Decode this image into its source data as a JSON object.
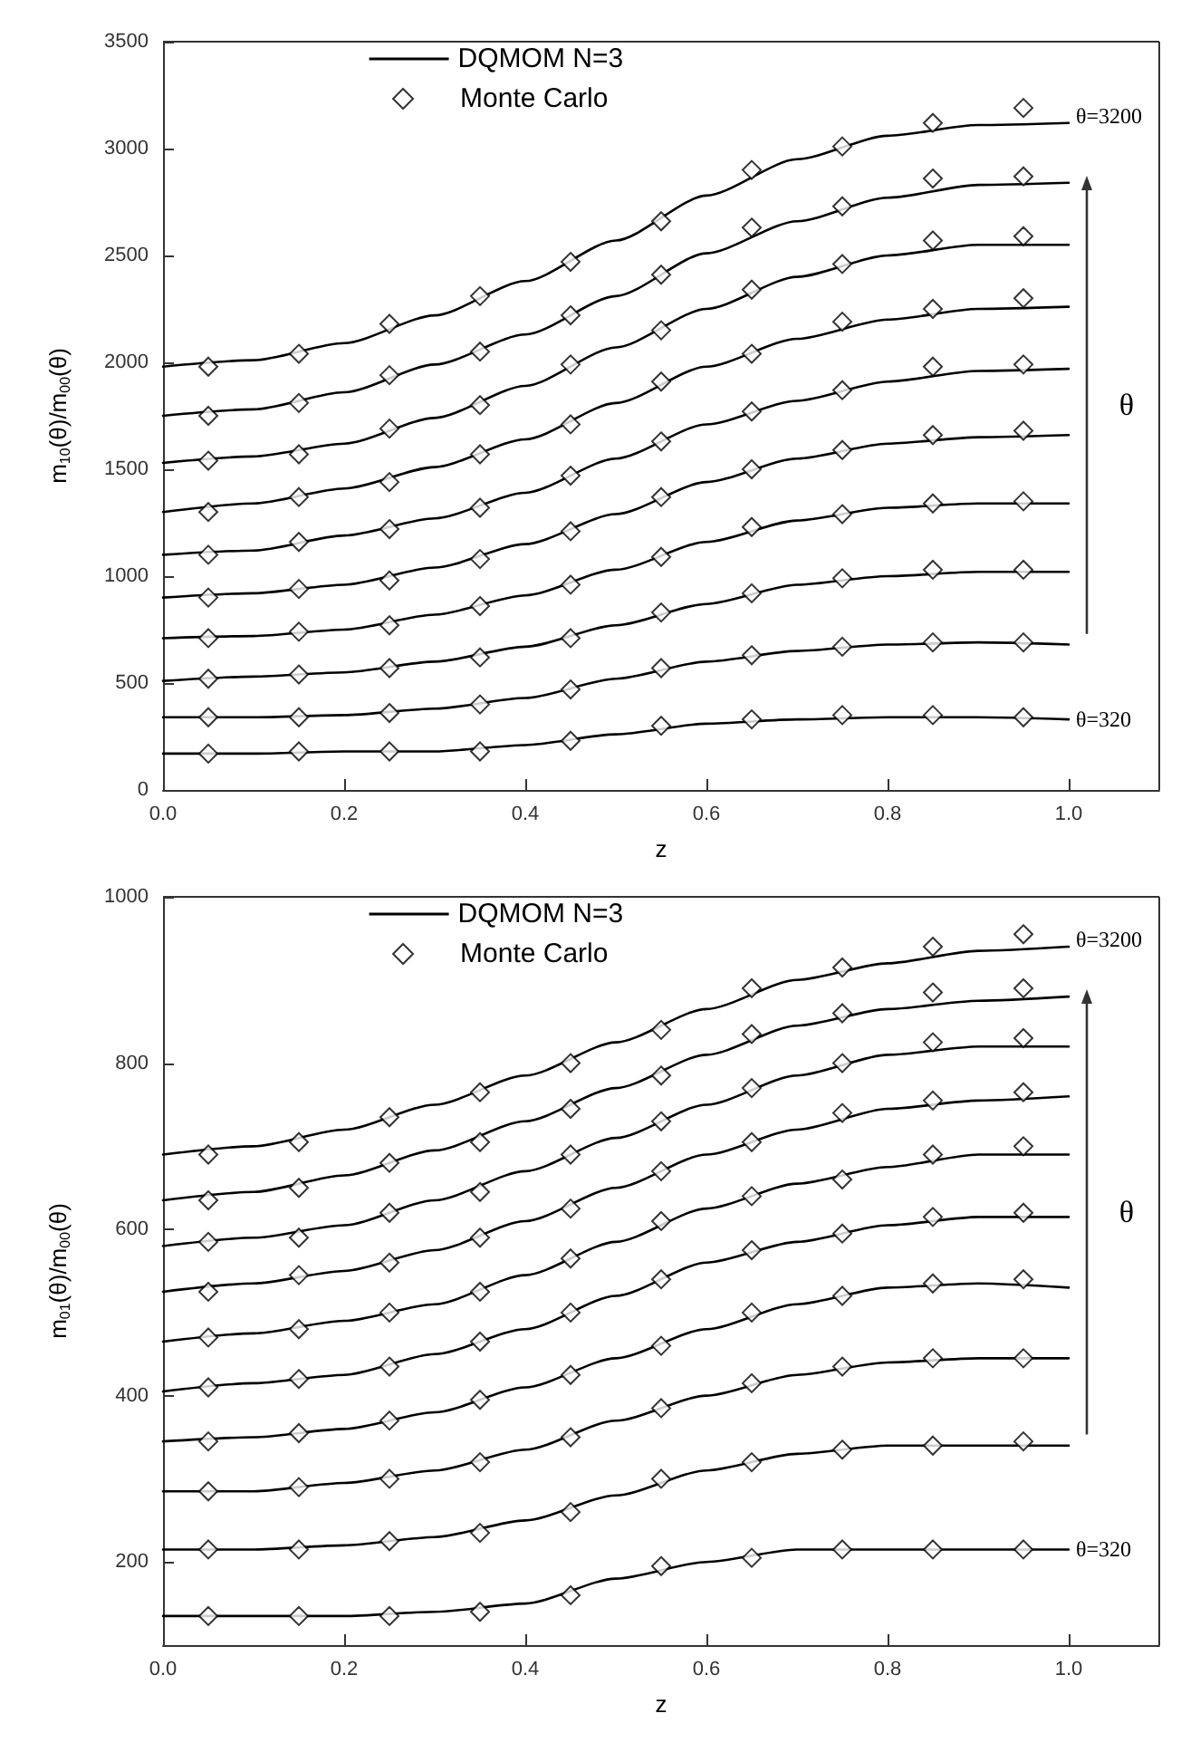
{
  "chart_data": [
    {
      "type": "line",
      "xlabel": "z",
      "ylabel": "m$_{10}$(θ)/m$_{00}$(θ)",
      "xlim": [
        0,
        1.1
      ],
      "ylim": [
        0,
        3500
      ],
      "xticks": [
        {
          "value": 0,
          "label": "0.0"
        },
        {
          "value": 0.2,
          "label": "0.2"
        },
        {
          "value": 0.4,
          "label": "0.4"
        },
        {
          "value": 0.6,
          "label": "0.6"
        },
        {
          "value": 0.8,
          "label": "0.8"
        },
        {
          "value": 1,
          "label": "1.0"
        }
      ],
      "yticks": [
        0,
        500,
        1000,
        1500,
        2000,
        2500,
        3000,
        3500
      ],
      "grid": false,
      "legend": "top",
      "annotations": [
        "θ=3200",
        "θ=320",
        "θ"
      ],
      "x": [
        0,
        0.1,
        0.2,
        0.3,
        0.4,
        0.5,
        0.6,
        0.7,
        0.8,
        0.9,
        1
      ],
      "series": [
        {
          "name": "DQMOM N=3",
          "color": "#000000",
          "marker": "none",
          "values": [
            170,
            170,
            180,
            180,
            210,
            260,
            310,
            330,
            340,
            340,
            330
          ]
        },
        {
          "color": "#000000",
          "marker": "none",
          "values": [
            340,
            340,
            350,
            380,
            430,
            520,
            600,
            650,
            680,
            690,
            680
          ]
        },
        {
          "color": "#000000",
          "marker": "none",
          "values": [
            510,
            530,
            550,
            600,
            670,
            770,
            870,
            960,
            1000,
            1020,
            1020
          ]
        },
        {
          "color": "#000000",
          "marker": "none",
          "values": [
            710,
            720,
            750,
            820,
            910,
            1030,
            1160,
            1260,
            1320,
            1340,
            1340
          ]
        },
        {
          "color": "#000000",
          "marker": "none",
          "values": [
            900,
            920,
            960,
            1040,
            1150,
            1290,
            1440,
            1550,
            1620,
            1650,
            1660
          ]
        },
        {
          "color": "#000000",
          "marker": "none",
          "values": [
            1100,
            1120,
            1190,
            1270,
            1390,
            1550,
            1710,
            1820,
            1910,
            1960,
            1970
          ]
        },
        {
          "color": "#000000",
          "marker": "none",
          "values": [
            1300,
            1340,
            1410,
            1510,
            1640,
            1810,
            1980,
            2110,
            2200,
            2250,
            2260
          ]
        },
        {
          "color": "#000000",
          "marker": "none",
          "values": [
            1530,
            1560,
            1620,
            1740,
            1890,
            2070,
            2250,
            2400,
            2500,
            2550,
            2550
          ]
        },
        {
          "color": "#000000",
          "marker": "none",
          "values": [
            1750,
            1780,
            1860,
            1990,
            2130,
            2310,
            2510,
            2660,
            2770,
            2830,
            2840
          ]
        },
        {
          "color": "#000000",
          "marker": "none",
          "values": [
            1980,
            2010,
            2090,
            2220,
            2380,
            2570,
            2780,
            2950,
            3060,
            3110,
            3120
          ]
        },
        {
          "type": "scatter",
          "name": "Monte Carlo",
          "color": "#000000",
          "marker": "diamond",
          "x": [
            0.05,
            0.15,
            0.25,
            0.35,
            0.45,
            0.55,
            0.65,
            0.75,
            0.85,
            0.95
          ],
          "values": [
            170,
            180,
            180,
            180,
            230,
            300,
            330,
            350,
            350,
            340
          ]
        },
        {
          "type": "scatter",
          "color": "#000000",
          "marker": "diamond",
          "x": [
            0.05,
            0.15,
            0.25,
            0.35,
            0.45,
            0.55,
            0.65,
            0.75,
            0.85,
            0.95
          ],
          "values": [
            340,
            340,
            360,
            400,
            470,
            570,
            630,
            670,
            690,
            690
          ]
        },
        {
          "type": "scatter",
          "color": "#000000",
          "marker": "diamond",
          "x": [
            0.05,
            0.15,
            0.25,
            0.35,
            0.45,
            0.55,
            0.65,
            0.75,
            0.85,
            0.95
          ],
          "values": [
            520,
            540,
            570,
            620,
            710,
            830,
            920,
            990,
            1030,
            1030
          ]
        },
        {
          "type": "scatter",
          "color": "#000000",
          "marker": "diamond",
          "x": [
            0.05,
            0.15,
            0.25,
            0.35,
            0.45,
            0.55,
            0.65,
            0.75,
            0.85,
            0.95
          ],
          "values": [
            710,
            740,
            770,
            860,
            960,
            1090,
            1230,
            1290,
            1340,
            1350
          ]
        },
        {
          "type": "scatter",
          "color": "#000000",
          "marker": "diamond",
          "x": [
            0.05,
            0.15,
            0.25,
            0.35,
            0.45,
            0.55,
            0.65,
            0.75,
            0.85,
            0.95
          ],
          "values": [
            900,
            940,
            980,
            1080,
            1210,
            1370,
            1500,
            1590,
            1660,
            1680
          ]
        },
        {
          "type": "scatter",
          "color": "#000000",
          "marker": "diamond",
          "x": [
            0.05,
            0.15,
            0.25,
            0.35,
            0.45,
            0.55,
            0.65,
            0.75,
            0.85,
            0.95
          ],
          "values": [
            1100,
            1160,
            1220,
            1320,
            1470,
            1630,
            1770,
            1870,
            1980,
            1990
          ]
        },
        {
          "type": "scatter",
          "color": "#000000",
          "marker": "diamond",
          "x": [
            0.05,
            0.15,
            0.25,
            0.35,
            0.45,
            0.55,
            0.65,
            0.75,
            0.85,
            0.95
          ],
          "values": [
            1300,
            1370,
            1440,
            1570,
            1710,
            1910,
            2040,
            2190,
            2250,
            2300
          ]
        },
        {
          "type": "scatter",
          "color": "#000000",
          "marker": "diamond",
          "x": [
            0.05,
            0.15,
            0.25,
            0.35,
            0.45,
            0.55,
            0.65,
            0.75,
            0.85,
            0.95
          ],
          "values": [
            1540,
            1570,
            1690,
            1800,
            1990,
            2150,
            2340,
            2460,
            2570,
            2590
          ]
        },
        {
          "type": "scatter",
          "color": "#000000",
          "marker": "diamond",
          "x": [
            0.05,
            0.15,
            0.25,
            0.35,
            0.45,
            0.55,
            0.65,
            0.75,
            0.85,
            0.95
          ],
          "values": [
            1750,
            1810,
            1940,
            2050,
            2220,
            2410,
            2630,
            2730,
            2860,
            2870
          ]
        },
        {
          "type": "scatter",
          "color": "#000000",
          "marker": "diamond",
          "x": [
            0.05,
            0.15,
            0.25,
            0.35,
            0.45,
            0.55,
            0.65,
            0.75,
            0.85,
            0.95
          ],
          "values": [
            1980,
            2040,
            2180,
            2310,
            2470,
            2660,
            2900,
            3010,
            3120,
            3190
          ]
        }
      ]
    },
    {
      "type": "line",
      "xlabel": "z",
      "ylabel": "m$_{01}$(θ)/m$_{00}$(θ)",
      "xlim": [
        0,
        1.1
      ],
      "ylim": [
        100,
        1000
      ],
      "xticks": [
        {
          "value": 0,
          "label": "0.0"
        },
        {
          "value": 0.2,
          "label": "0.2"
        },
        {
          "value": 0.4,
          "label": "0.4"
        },
        {
          "value": 0.6,
          "label": "0.6"
        },
        {
          "value": 0.8,
          "label": "0.8"
        },
        {
          "value": 1,
          "label": "1.0"
        }
      ],
      "yticks": [
        200,
        400,
        600,
        800,
        1000
      ],
      "grid": false,
      "legend": "top",
      "annotations": [
        "θ=3200",
        "θ=320",
        "θ"
      ],
      "x": [
        0,
        0.1,
        0.2,
        0.3,
        0.4,
        0.5,
        0.6,
        0.7,
        0.8,
        0.9,
        1
      ],
      "series": [
        {
          "name": "DQMOM N=3",
          "color": "#000000",
          "marker": "none",
          "values": [
            135,
            135,
            135,
            140,
            150,
            180,
            200,
            215,
            215,
            215,
            215
          ]
        },
        {
          "color": "#000000",
          "marker": "none",
          "values": [
            215,
            215,
            220,
            230,
            250,
            280,
            310,
            330,
            340,
            340,
            340
          ]
        },
        {
          "color": "#000000",
          "marker": "none",
          "values": [
            285,
            285,
            295,
            310,
            335,
            370,
            400,
            425,
            440,
            445,
            445
          ]
        },
        {
          "color": "#000000",
          "marker": "none",
          "values": [
            345,
            350,
            360,
            380,
            410,
            445,
            480,
            510,
            530,
            535,
            530
          ]
        },
        {
          "color": "#000000",
          "marker": "none",
          "values": [
            405,
            415,
            425,
            450,
            480,
            520,
            560,
            585,
            605,
            615,
            615
          ]
        },
        {
          "color": "#000000",
          "marker": "none",
          "values": [
            465,
            475,
            490,
            510,
            545,
            585,
            625,
            655,
            675,
            690,
            690
          ]
        },
        {
          "color": "#000000",
          "marker": "none",
          "values": [
            525,
            535,
            550,
            575,
            610,
            650,
            690,
            720,
            745,
            755,
            760
          ]
        },
        {
          "color": "#000000",
          "marker": "none",
          "values": [
            580,
            590,
            605,
            635,
            670,
            710,
            750,
            785,
            810,
            820,
            820
          ]
        },
        {
          "color": "#000000",
          "marker": "none",
          "values": [
            635,
            645,
            665,
            695,
            730,
            770,
            810,
            845,
            865,
            875,
            880
          ]
        },
        {
          "color": "#000000",
          "marker": "none",
          "values": [
            690,
            700,
            720,
            750,
            785,
            825,
            865,
            900,
            920,
            935,
            940
          ]
        },
        {
          "type": "scatter",
          "name": "Monte Carlo",
          "color": "#000000",
          "marker": "diamond",
          "x": [
            0.05,
            0.15,
            0.25,
            0.35,
            0.45,
            0.55,
            0.65,
            0.75,
            0.85,
            0.95
          ],
          "values": [
            135,
            135,
            135,
            140,
            160,
            195,
            205,
            215,
            215,
            215
          ]
        },
        {
          "type": "scatter",
          "color": "#000000",
          "marker": "diamond",
          "x": [
            0.05,
            0.15,
            0.25,
            0.35,
            0.45,
            0.55,
            0.65,
            0.75,
            0.85,
            0.95
          ],
          "values": [
            215,
            215,
            225,
            235,
            260,
            300,
            320,
            335,
            340,
            345
          ]
        },
        {
          "type": "scatter",
          "color": "#000000",
          "marker": "diamond",
          "x": [
            0.05,
            0.15,
            0.25,
            0.35,
            0.45,
            0.55,
            0.65,
            0.75,
            0.85,
            0.95
          ],
          "values": [
            285,
            290,
            300,
            320,
            350,
            385,
            415,
            435,
            445,
            445
          ]
        },
        {
          "type": "scatter",
          "color": "#000000",
          "marker": "diamond",
          "x": [
            0.05,
            0.15,
            0.25,
            0.35,
            0.45,
            0.55,
            0.65,
            0.75,
            0.85,
            0.95
          ],
          "values": [
            345,
            355,
            370,
            395,
            425,
            460,
            500,
            520,
            535,
            540
          ]
        },
        {
          "type": "scatter",
          "color": "#000000",
          "marker": "diamond",
          "x": [
            0.05,
            0.15,
            0.25,
            0.35,
            0.45,
            0.55,
            0.65,
            0.75,
            0.85,
            0.95
          ],
          "values": [
            410,
            420,
            435,
            465,
            500,
            540,
            575,
            595,
            615,
            620
          ]
        },
        {
          "type": "scatter",
          "color": "#000000",
          "marker": "diamond",
          "x": [
            0.05,
            0.15,
            0.25,
            0.35,
            0.45,
            0.55,
            0.65,
            0.75,
            0.85,
            0.95
          ],
          "values": [
            470,
            480,
            500,
            525,
            565,
            610,
            640,
            660,
            690,
            700
          ]
        },
        {
          "type": "scatter",
          "color": "#000000",
          "marker": "diamond",
          "x": [
            0.05,
            0.15,
            0.25,
            0.35,
            0.45,
            0.55,
            0.65,
            0.75,
            0.85,
            0.95
          ],
          "values": [
            525,
            545,
            560,
            590,
            625,
            670,
            705,
            740,
            755,
            765
          ]
        },
        {
          "type": "scatter",
          "color": "#000000",
          "marker": "diamond",
          "x": [
            0.05,
            0.15,
            0.25,
            0.35,
            0.45,
            0.55,
            0.65,
            0.75,
            0.85,
            0.95
          ],
          "values": [
            585,
            590,
            620,
            645,
            690,
            730,
            770,
            800,
            825,
            830
          ]
        },
        {
          "type": "scatter",
          "color": "#000000",
          "marker": "diamond",
          "x": [
            0.05,
            0.15,
            0.25,
            0.35,
            0.45,
            0.55,
            0.65,
            0.75,
            0.85,
            0.95
          ],
          "values": [
            635,
            650,
            680,
            705,
            745,
            785,
            835,
            860,
            885,
            890
          ]
        },
        {
          "type": "scatter",
          "color": "#000000",
          "marker": "diamond",
          "x": [
            0.05,
            0.15,
            0.25,
            0.35,
            0.45,
            0.55,
            0.65,
            0.75,
            0.85,
            0.95
          ],
          "values": [
            690,
            705,
            735,
            765,
            800,
            840,
            890,
            915,
            940,
            955
          ]
        }
      ]
    }
  ]
}
